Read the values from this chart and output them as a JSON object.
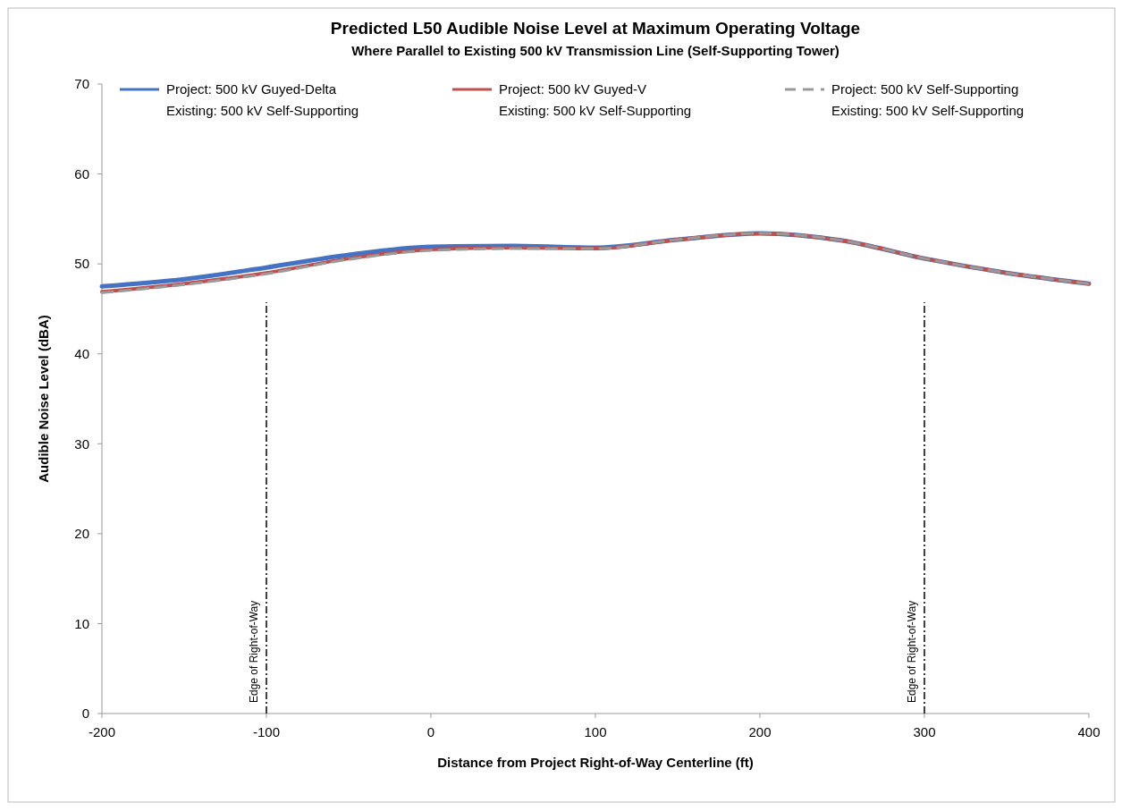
{
  "chart_data": {
    "type": "line",
    "title": "Predicted L50 Audible Noise Level at Maximum Operating Voltage",
    "subtitle": "Where Parallel to Existing 500 kV Transmission Line (Self-Supporting Tower)",
    "xlabel": "Distance from Project Right-of-Way Centerline (ft)",
    "ylabel": "Audible Noise Level (dBA)",
    "x": [
      -200,
      -150,
      -100,
      -50,
      0,
      50,
      100,
      150,
      200,
      250,
      300,
      350,
      400
    ],
    "series": [
      {
        "name": "Project: 500 kV Guyed-Delta\nExisting: 500 kV Self-Supporting",
        "color": "#4472c4",
        "line_style": "solid",
        "values": [
          47.5,
          48.3,
          49.6,
          51.0,
          51.9,
          52.0,
          51.8,
          52.7,
          53.4,
          52.6,
          50.6,
          49.0,
          47.8
        ]
      },
      {
        "name": "Project: 500 kV Guyed-V\nExisting: 500 kV Self-Supporting",
        "color": "#c0504d",
        "line_style": "solid",
        "values": [
          46.9,
          47.8,
          49.0,
          50.6,
          51.6,
          51.8,
          51.7,
          52.7,
          53.4,
          52.6,
          50.6,
          49.0,
          47.8
        ]
      },
      {
        "name": "Project: 500 kV Self-Supporting\nExisting: 500 kV Self-Supporting",
        "color": "#9a9a9a",
        "line_style": "dashed",
        "values": [
          46.8,
          47.7,
          48.9,
          50.5,
          51.5,
          51.7,
          51.7,
          52.7,
          53.4,
          52.6,
          50.6,
          49.0,
          47.8
        ]
      }
    ],
    "xlim": [
      -200,
      400
    ],
    "xticks": [
      -200,
      -100,
      0,
      100,
      200,
      300,
      400
    ],
    "ylim": [
      0,
      70
    ],
    "yticks": [
      0,
      10,
      20,
      30,
      40,
      50,
      60,
      70
    ],
    "ref_lines": [
      {
        "axis": "x",
        "value": -100,
        "label": "Edge of Right-of-Way",
        "color": "#000000",
        "line_style": "dashdot"
      },
      {
        "axis": "x",
        "value": 300,
        "label": "Edge of Right-of-Way",
        "color": "#000000",
        "line_style": "dashdot"
      }
    ],
    "legend": "top",
    "grid": false,
    "marker": "none"
  }
}
